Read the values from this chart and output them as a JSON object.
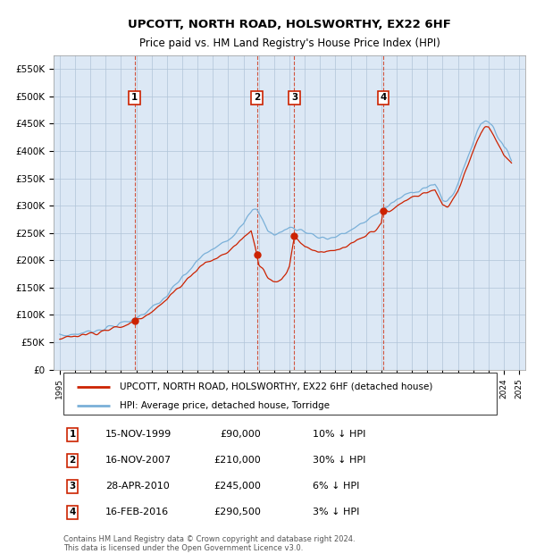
{
  "title": "UPCOTT, NORTH ROAD, HOLSWORTHY, EX22 6HF",
  "subtitle": "Price paid vs. HM Land Registry's House Price Index (HPI)",
  "yticks": [
    0,
    50000,
    100000,
    150000,
    200000,
    250000,
    300000,
    350000,
    400000,
    450000,
    500000,
    550000
  ],
  "ytick_labels": [
    "£0",
    "£50K",
    "£100K",
    "£150K",
    "£200K",
    "£250K",
    "£300K",
    "£350K",
    "£400K",
    "£450K",
    "£500K",
    "£550K"
  ],
  "xlim_start": 1994.6,
  "xlim_end": 2025.4,
  "ylim": [
    0,
    575000
  ],
  "bg_color": "#dce8f5",
  "grid_color": "#b0c4d8",
  "hpi_color": "#7ab0d8",
  "price_color": "#cc2200",
  "legend_label_price": "UPCOTT, NORTH ROAD, HOLSWORTHY, EX22 6HF (detached house)",
  "legend_label_hpi": "HPI: Average price, detached house, Torridge",
  "transactions": [
    {
      "num": 1,
      "date_str": "15-NOV-1999",
      "date_x": 1999.88,
      "price": 90000,
      "pct": "10%",
      "label": "1"
    },
    {
      "num": 2,
      "date_str": "16-NOV-2007",
      "date_x": 2007.88,
      "price": 210000,
      "pct": "30%",
      "label": "2"
    },
    {
      "num": 3,
      "date_str": "28-APR-2010",
      "date_x": 2010.32,
      "price": 245000,
      "pct": "6%",
      "label": "3"
    },
    {
      "num": 4,
      "date_str": "16-FEB-2016",
      "date_x": 2016.12,
      "price": 290500,
      "pct": "3%",
      "label": "4"
    }
  ],
  "footer_line1": "Contains HM Land Registry data © Crown copyright and database right 2024.",
  "footer_line2": "This data is licensed under the Open Government Licence v3.0."
}
